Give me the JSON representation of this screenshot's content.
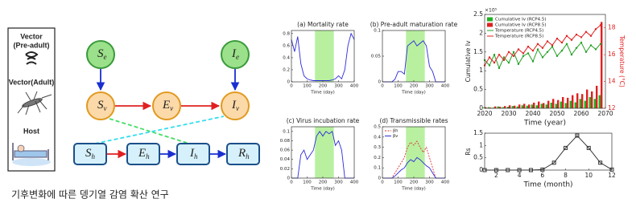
{
  "legend_box": {
    "vector_preadult": [
      "Vector",
      "(Pre-adult)"
    ],
    "vector_adult": "Vector(Adult)",
    "host": "Host"
  },
  "diagram": {
    "nodes": [
      {
        "main": "S",
        "sub": "e"
      },
      {
        "main": "I",
        "sub": "e"
      },
      {
        "main": "S",
        "sub": "v"
      },
      {
        "main": "E",
        "sub": "v"
      },
      {
        "main": "I",
        "sub": "v"
      },
      {
        "main": "S",
        "sub": "h"
      },
      {
        "main": "E",
        "sub": "h"
      },
      {
        "main": "I",
        "sub": "h"
      },
      {
        "main": "R",
        "sub": "h"
      }
    ]
  },
  "caption": "기후변화에 따른 뎅기열 감염 확산 연구",
  "chart_data": [
    {
      "type": "line",
      "title": "(a) Mortality rate",
      "xlabel": "Time (day)",
      "x": [
        0,
        20,
        40,
        60,
        80,
        100,
        120,
        140,
        160,
        180,
        200,
        220,
        240,
        260,
        280,
        300,
        320,
        340,
        360,
        380,
        400
      ],
      "series": [
        {
          "color": "#2b2bd9",
          "values": [
            0.7,
            0.5,
            0.75,
            0.3,
            0.1,
            0.05,
            0.03,
            0.02,
            0.02,
            0.02,
            0.02,
            0.02,
            0.02,
            0.03,
            0.05,
            0.1,
            0.05,
            0.2,
            0.6,
            0.8,
            0.7
          ]
        }
      ],
      "xlim": [
        0,
        400
      ],
      "xticks": [
        0,
        100,
        200,
        300,
        400
      ],
      "ylim": [
        0,
        0.85
      ],
      "yticks": [
        0,
        0.2,
        0.4,
        0.6,
        0.8
      ],
      "shade": [
        150,
        270
      ],
      "shade_color": "#b8f0a0"
    },
    {
      "type": "line",
      "title": "(b) Pre-adult maturation rate",
      "xlabel": "Time (day)",
      "x": [
        0,
        20,
        40,
        60,
        80,
        100,
        120,
        140,
        160,
        180,
        200,
        220,
        240,
        260,
        280,
        300,
        320,
        340,
        360,
        380,
        400
      ],
      "series": [
        {
          "color": "#2b2bd9",
          "values": [
            0,
            0,
            0,
            0,
            0.005,
            0.02,
            0.02,
            0.015,
            0.07,
            0.075,
            0.08,
            0.07,
            0.075,
            0.08,
            0.07,
            0.03,
            0.02,
            0,
            0,
            0,
            0
          ]
        }
      ],
      "xlim": [
        0,
        400
      ],
      "xticks": [
        0,
        100,
        200,
        300,
        400
      ],
      "ylim": [
        0,
        0.1
      ],
      "yticks": [
        0,
        0.05,
        0.1
      ],
      "shade": [
        150,
        270
      ],
      "shade_color": "#b8f0a0"
    },
    {
      "type": "line",
      "title": "(c) Virus incubation rate",
      "xlabel": "Time (day)",
      "x": [
        0,
        20,
        40,
        60,
        80,
        100,
        120,
        140,
        160,
        180,
        200,
        220,
        240,
        260,
        280,
        300,
        320,
        340,
        360,
        380,
        400
      ],
      "series": [
        {
          "color": "#2b2bd9",
          "values": [
            0,
            0,
            0,
            0.05,
            0.06,
            0.04,
            0.05,
            0.06,
            0.09,
            0.1,
            0.09,
            0.1,
            0.095,
            0.1,
            0.07,
            0.08,
            0.06,
            0,
            0,
            0,
            0
          ]
        }
      ],
      "xlim": [
        0,
        400
      ],
      "xticks": [
        0,
        100,
        200,
        300,
        400
      ],
      "ylim": [
        0,
        0.11
      ],
      "yticks": [
        0,
        0.02,
        0.04,
        0.06,
        0.08,
        0.1
      ],
      "shade": [
        150,
        270
      ],
      "shade_color": "#b8f0a0"
    },
    {
      "type": "line",
      "title": "(d) Transmissible rates",
      "xlabel": "Time (day)",
      "x": [
        0,
        20,
        40,
        60,
        80,
        100,
        120,
        140,
        160,
        180,
        200,
        220,
        240,
        260,
        280,
        300,
        320,
        340,
        360,
        380,
        400
      ],
      "series": [
        {
          "name": "βh",
          "color": "#e03030",
          "dash": true,
          "values": [
            0,
            0,
            0,
            0,
            0.05,
            0.1,
            0.15,
            0.2,
            0.3,
            0.35,
            0.32,
            0.36,
            0.3,
            0.25,
            0.3,
            0.2,
            0.1,
            0,
            0,
            0,
            0
          ]
        },
        {
          "name": "βv",
          "color": "#2b2bd9",
          "values": [
            0,
            0,
            0,
            0,
            0.02,
            0.05,
            0.08,
            0.1,
            0.15,
            0.18,
            0.16,
            0.2,
            0.18,
            0.15,
            0.12,
            0.1,
            0.05,
            0,
            0,
            0,
            0
          ]
        }
      ],
      "xlim": [
        0,
        400
      ],
      "xticks": [
        0,
        100,
        200,
        300,
        400
      ],
      "ylim": [
        0,
        0.5
      ],
      "yticks": [
        0,
        0.1,
        0.2,
        0.3,
        0.4,
        0.5
      ],
      "shade": [
        150,
        270
      ],
      "shade_color": "#b8f0a0",
      "legend": "upper left"
    },
    {
      "type": "bar",
      "xlabel": "Time (year)",
      "ylabel": "Cumulative Iv",
      "y2label": "Temperature (°C)",
      "annotation": "×10⁵",
      "x": [
        2020,
        2022,
        2024,
        2026,
        2028,
        2030,
        2032,
        2034,
        2036,
        2038,
        2040,
        2042,
        2044,
        2046,
        2048,
        2050,
        2052,
        2054,
        2056,
        2058,
        2060,
        2062,
        2064,
        2066,
        2068
      ],
      "series": [
        {
          "name": "Cumulative Iv (RCP4.5)",
          "color": "#22b022",
          "values": [
            0.02,
            0.03,
            0.02,
            0.05,
            0.03,
            0.04,
            0.06,
            0.05,
            0.08,
            0.07,
            0.1,
            0.08,
            0.12,
            0.1,
            0.15,
            0.12,
            0.18,
            0.14,
            0.2,
            0.16,
            0.25,
            0.2,
            0.3,
            0.25,
            0.35
          ]
        },
        {
          "name": "Cumulative Iv (RCP8.5)",
          "color": "#e02020",
          "values": [
            0.03,
            0.02,
            0.05,
            0.04,
            0.06,
            0.08,
            0.07,
            0.1,
            0.12,
            0.1,
            0.15,
            0.18,
            0.14,
            0.2,
            0.25,
            0.22,
            0.3,
            0.28,
            0.35,
            0.4,
            0.38,
            0.5,
            0.45,
            0.6,
            2.3
          ]
        },
        {
          "name": "Temperature (RCP4.5)",
          "type": "line",
          "axis": "y2",
          "marker": true,
          "color": "#22a022",
          "values": [
            15.6,
            15.2,
            16.0,
            15.0,
            15.8,
            15.4,
            16.2,
            15.3,
            15.9,
            16.1,
            15.5,
            16.4,
            15.8,
            16.2,
            16.6,
            15.9,
            16.3,
            16.8,
            16.0,
            16.5,
            16.9,
            16.2,
            16.7,
            16.4,
            16.8
          ]
        },
        {
          "name": "Temperature (RCP8.5)",
          "type": "line",
          "axis": "y2",
          "marker": true,
          "color": "#e02020",
          "values": [
            15.2,
            15.8,
            15.4,
            16.0,
            15.6,
            16.2,
            15.9,
            16.4,
            16.1,
            16.6,
            16.3,
            16.8,
            16.5,
            17.0,
            16.7,
            17.2,
            16.9,
            17.4,
            17.1,
            17.5,
            17.3,
            17.7,
            17.4,
            17.9,
            18.2
          ]
        }
      ],
      "xlim": [
        2020,
        2070
      ],
      "xticks": [
        2020,
        2030,
        2040,
        2050,
        2060,
        2070
      ],
      "ylim": [
        0,
        2.5
      ],
      "yticks": [
        0,
        0.5,
        1,
        1.5,
        2,
        2.5
      ],
      "y2lim": [
        12,
        19
      ],
      "y2ticks": [
        12,
        14,
        16,
        18
      ],
      "y2color": "#e02020",
      "legend": "upper left"
    },
    {
      "type": "line",
      "xlabel": "Time (month)",
      "ylabel": "Rs",
      "x": [
        1,
        2,
        3,
        4,
        5,
        6,
        7,
        8,
        9,
        10,
        11,
        12
      ],
      "series": [
        {
          "color": "#333333",
          "marker": true,
          "values": [
            0,
            0,
            0,
            0,
            0,
            0.02,
            0.3,
            0.9,
            1.4,
            0.9,
            0.3,
            0.02
          ]
        }
      ],
      "xlim": [
        1,
        12
      ],
      "xticks": [
        2,
        4,
        6,
        8,
        10,
        12
      ],
      "ylim": [
        0,
        1.5
      ],
      "yticks": [
        0,
        0.5,
        1,
        1.5
      ]
    }
  ]
}
